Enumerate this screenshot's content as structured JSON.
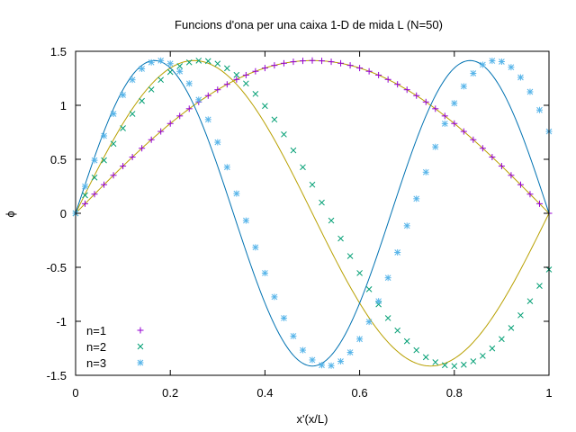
{
  "chart_data": {
    "type": "scatter",
    "title": "Funcions d'ona per una caixa 1-D de mida L (N=50)",
    "xlabel": "x'(x/L)",
    "ylabel": "ϕ",
    "xlim": [
      0,
      1
    ],
    "ylim": [
      -1.5,
      1.5
    ],
    "x_ticks": [
      "0",
      "0.2",
      "0.4",
      "0.6",
      "0.8",
      "1"
    ],
    "y_ticks": [
      "1.5",
      "1",
      "0.5",
      "0",
      "-0.5",
      "-1",
      "-1.5"
    ],
    "grid": false,
    "legend_position": "bottom-left",
    "curves": [
      {
        "function": "sqrt(2)*sin(1*pi*x)",
        "color": "#b8a000"
      },
      {
        "function": "sqrt(2)*sin(2*pi*x)",
        "color": "#b8a000"
      },
      {
        "function": "sqrt(2)*sin(3*pi*x)",
        "color": "#0072b2"
      }
    ],
    "series": [
      {
        "name": "n=1",
        "marker": "+",
        "color": "#9400d3",
        "n": 1,
        "points": 50,
        "x_range": [
          0,
          1
        ],
        "x_scale": 1.0
      },
      {
        "name": "n=2",
        "marker": "x",
        "color": "#009e73",
        "n": 2,
        "points": 50,
        "x_range": [
          0,
          1
        ],
        "x_scale": 0.94
      },
      {
        "name": "n=3",
        "marker": "*",
        "color": "#56b4e9",
        "n": 3,
        "points": 50,
        "x_range": [
          0,
          1
        ],
        "x_scale": 0.94
      }
    ]
  }
}
